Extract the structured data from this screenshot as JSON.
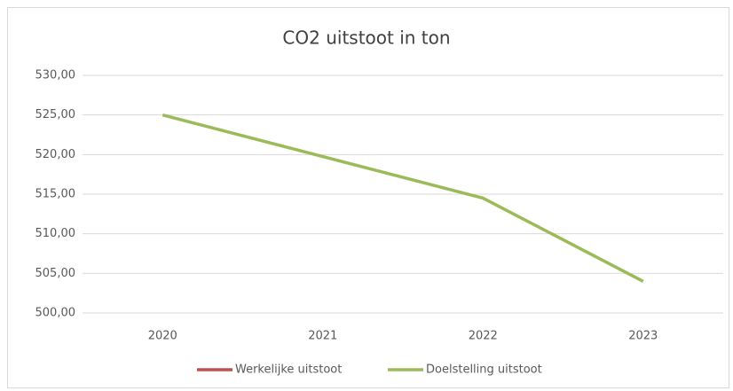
{
  "chart_data": {
    "type": "line",
    "title": "CO2 uitstoot in ton",
    "categories": [
      "2020",
      "2021",
      "2022",
      "2023"
    ],
    "series": [
      {
        "name": "Werkelijke uitstoot",
        "color": "#c0504d",
        "values": [
          null,
          null,
          null,
          null
        ]
      },
      {
        "name": "Doelstelling uitstoot",
        "color": "#9bbb59",
        "values": [
          525,
          519.75,
          514.5,
          504
        ]
      }
    ],
    "ylim": [
      500,
      530
    ],
    "yticks": [
      {
        "value": 500,
        "label": "500,00"
      },
      {
        "value": 505,
        "label": "505,00"
      },
      {
        "value": 510,
        "label": "510,00"
      },
      {
        "value": 515,
        "label": "515,00"
      },
      {
        "value": 520,
        "label": "520,00"
      },
      {
        "value": 525,
        "label": "525,00"
      },
      {
        "value": 530,
        "label": "530,00"
      }
    ],
    "grid": true,
    "legend": "bottom"
  }
}
